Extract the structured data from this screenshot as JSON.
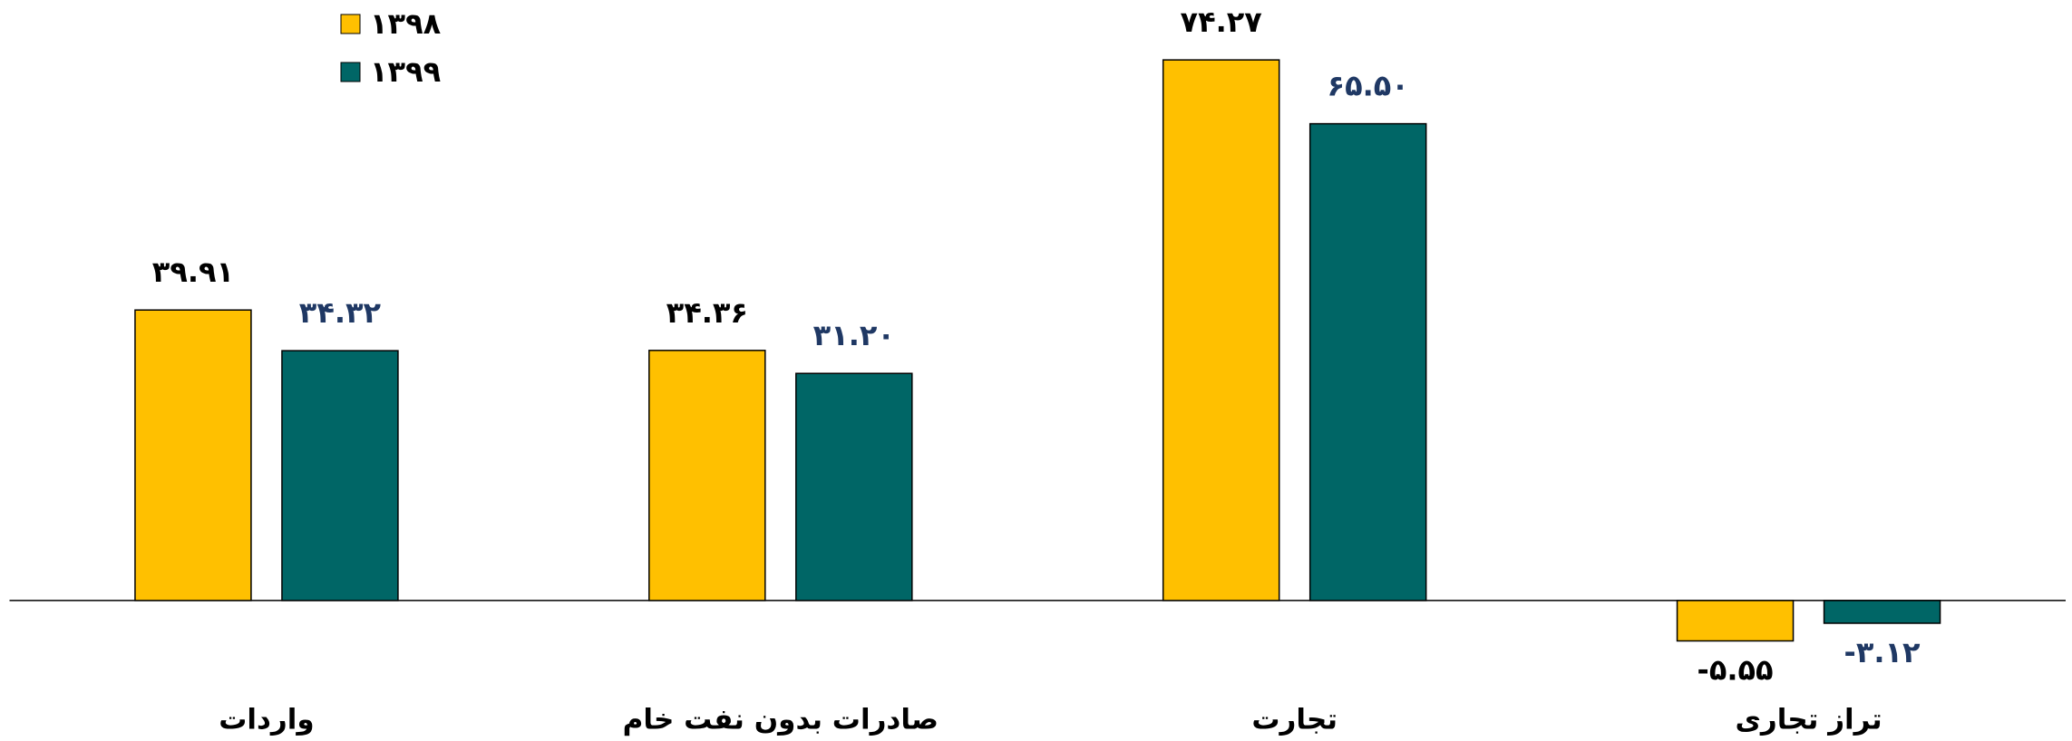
{
  "chart_data": {
    "type": "bar",
    "categories": [
      "واردات",
      "صادرات بدون نفت خام",
      "تجارت",
      "تراز تجاری"
    ],
    "series": [
      {
        "name": "۱۳۹۸",
        "color": "#FFC000",
        "label_color": "#000000",
        "values": [
          39.91,
          34.36,
          74.27,
          -5.55
        ],
        "value_labels": [
          "۳۹.۹۱",
          "۳۴.۳۶",
          "۷۴.۲۷",
          "-۵.۵۵"
        ]
      },
      {
        "name": "۱۳۹۹",
        "color": "#006666",
        "label_color": "#1F3864",
        "values": [
          34.32,
          31.2,
          65.5,
          -3.12
        ],
        "value_labels": [
          "۳۴.۳۲",
          "۳۱.۲۰",
          "۶۵.۵۰",
          "-۳.۱۲"
        ]
      }
    ],
    "ylim": [
      -19.3,
      82.5
    ],
    "legend": "top-left"
  }
}
